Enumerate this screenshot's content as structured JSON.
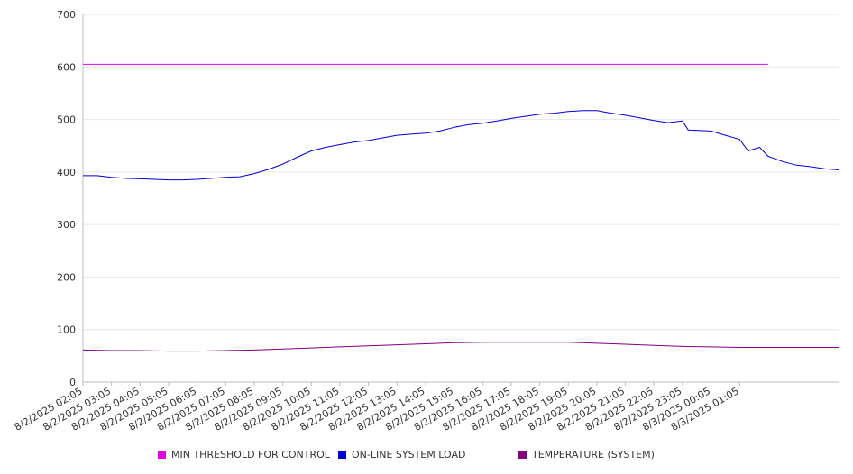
{
  "chart_data": {
    "type": "line",
    "title": "",
    "xlabel": "",
    "ylabel": "",
    "ylim": [
      0,
      700
    ],
    "yticks": [
      0,
      100,
      200,
      300,
      400,
      500,
      600,
      700
    ],
    "grid": true,
    "legend_position": "bottom",
    "x_tick_labels": [
      "8/2/2025 02:05",
      "8/2/2025 03:05",
      "8/2/2025 04:05",
      "8/2/2025 05:05",
      "8/2/2025 06:05",
      "8/2/2025 07:05",
      "8/2/2025 08:05",
      "8/2/2025 09:05",
      "8/2/2025 10:05",
      "8/2/2025 11:05",
      "8/2/2025 12:05",
      "8/2/2025 13:05",
      "8/2/2025 14:05",
      "8/2/2025 15:05",
      "8/2/2025 16:05",
      "8/2/2025 17:05",
      "8/2/2025 18:05",
      "8/2/2025 19:05",
      "8/2/2025 20:05",
      "8/2/2025 21:05",
      "8/2/2025 22:05",
      "8/2/2025 23:05",
      "8/3/2025 00:05",
      "8/3/2025 01:05"
    ],
    "series": [
      {
        "name": "MIN THRESHOLD FOR CONTROL",
        "color": "#e000e0",
        "points": [
          [
            0,
            605
          ],
          [
            24,
            605
          ]
        ]
      },
      {
        "name": "ON-LINE SYSTEM LOAD",
        "color": "#0000cc",
        "points": [
          [
            0,
            393
          ],
          [
            0.5,
            393
          ],
          [
            1,
            390
          ],
          [
            1.5,
            388
          ],
          [
            2,
            387
          ],
          [
            2.5,
            386
          ],
          [
            3,
            385
          ],
          [
            3.5,
            385
          ],
          [
            4,
            386
          ],
          [
            4.5,
            388
          ],
          [
            5,
            390
          ],
          [
            5.5,
            391
          ],
          [
            6,
            397
          ],
          [
            6.5,
            405
          ],
          [
            7,
            415
          ],
          [
            7.5,
            428
          ],
          [
            8,
            440
          ],
          [
            8.5,
            447
          ],
          [
            9,
            452
          ],
          [
            9.5,
            457
          ],
          [
            10,
            460
          ],
          [
            10.5,
            465
          ],
          [
            11,
            470
          ],
          [
            11.5,
            472
          ],
          [
            12,
            474
          ],
          [
            12.5,
            478
          ],
          [
            13,
            485
          ],
          [
            13.5,
            490
          ],
          [
            14,
            493
          ],
          [
            14.5,
            497
          ],
          [
            15,
            502
          ],
          [
            15.5,
            506
          ],
          [
            16,
            510
          ],
          [
            16.5,
            512
          ],
          [
            17,
            515
          ],
          [
            17.5,
            517
          ],
          [
            18,
            517
          ],
          [
            18.5,
            512
          ],
          [
            19,
            508
          ],
          [
            19.5,
            503
          ],
          [
            20,
            498
          ],
          [
            20.5,
            494
          ],
          [
            21,
            497
          ],
          [
            21.2,
            480
          ],
          [
            22,
            478
          ],
          [
            22.5,
            470
          ],
          [
            23,
            462
          ],
          [
            23.3,
            440
          ],
          [
            23.7,
            447
          ],
          [
            24,
            430
          ],
          [
            24.5,
            420
          ],
          [
            25,
            413
          ],
          [
            25.5,
            410
          ],
          [
            26,
            406
          ],
          [
            26.5,
            404
          ]
        ]
      },
      {
        "name": "TEMPERATURE (SYSTEM)",
        "color": "#800080",
        "points": [
          [
            0,
            61
          ],
          [
            1,
            60
          ],
          [
            2,
            60
          ],
          [
            3,
            59
          ],
          [
            4,
            59
          ],
          [
            5,
            60
          ],
          [
            6,
            61
          ],
          [
            7,
            63
          ],
          [
            8,
            65
          ],
          [
            9,
            67
          ],
          [
            10,
            69
          ],
          [
            11,
            71
          ],
          [
            12,
            73
          ],
          [
            13,
            75
          ],
          [
            14,
            76
          ],
          [
            15,
            76
          ],
          [
            16,
            76
          ],
          [
            17,
            76
          ],
          [
            18,
            74
          ],
          [
            19,
            72
          ],
          [
            20,
            70
          ],
          [
            21,
            68
          ],
          [
            22,
            67
          ],
          [
            23,
            66
          ],
          [
            24,
            66
          ],
          [
            26.5,
            66
          ]
        ]
      }
    ]
  }
}
